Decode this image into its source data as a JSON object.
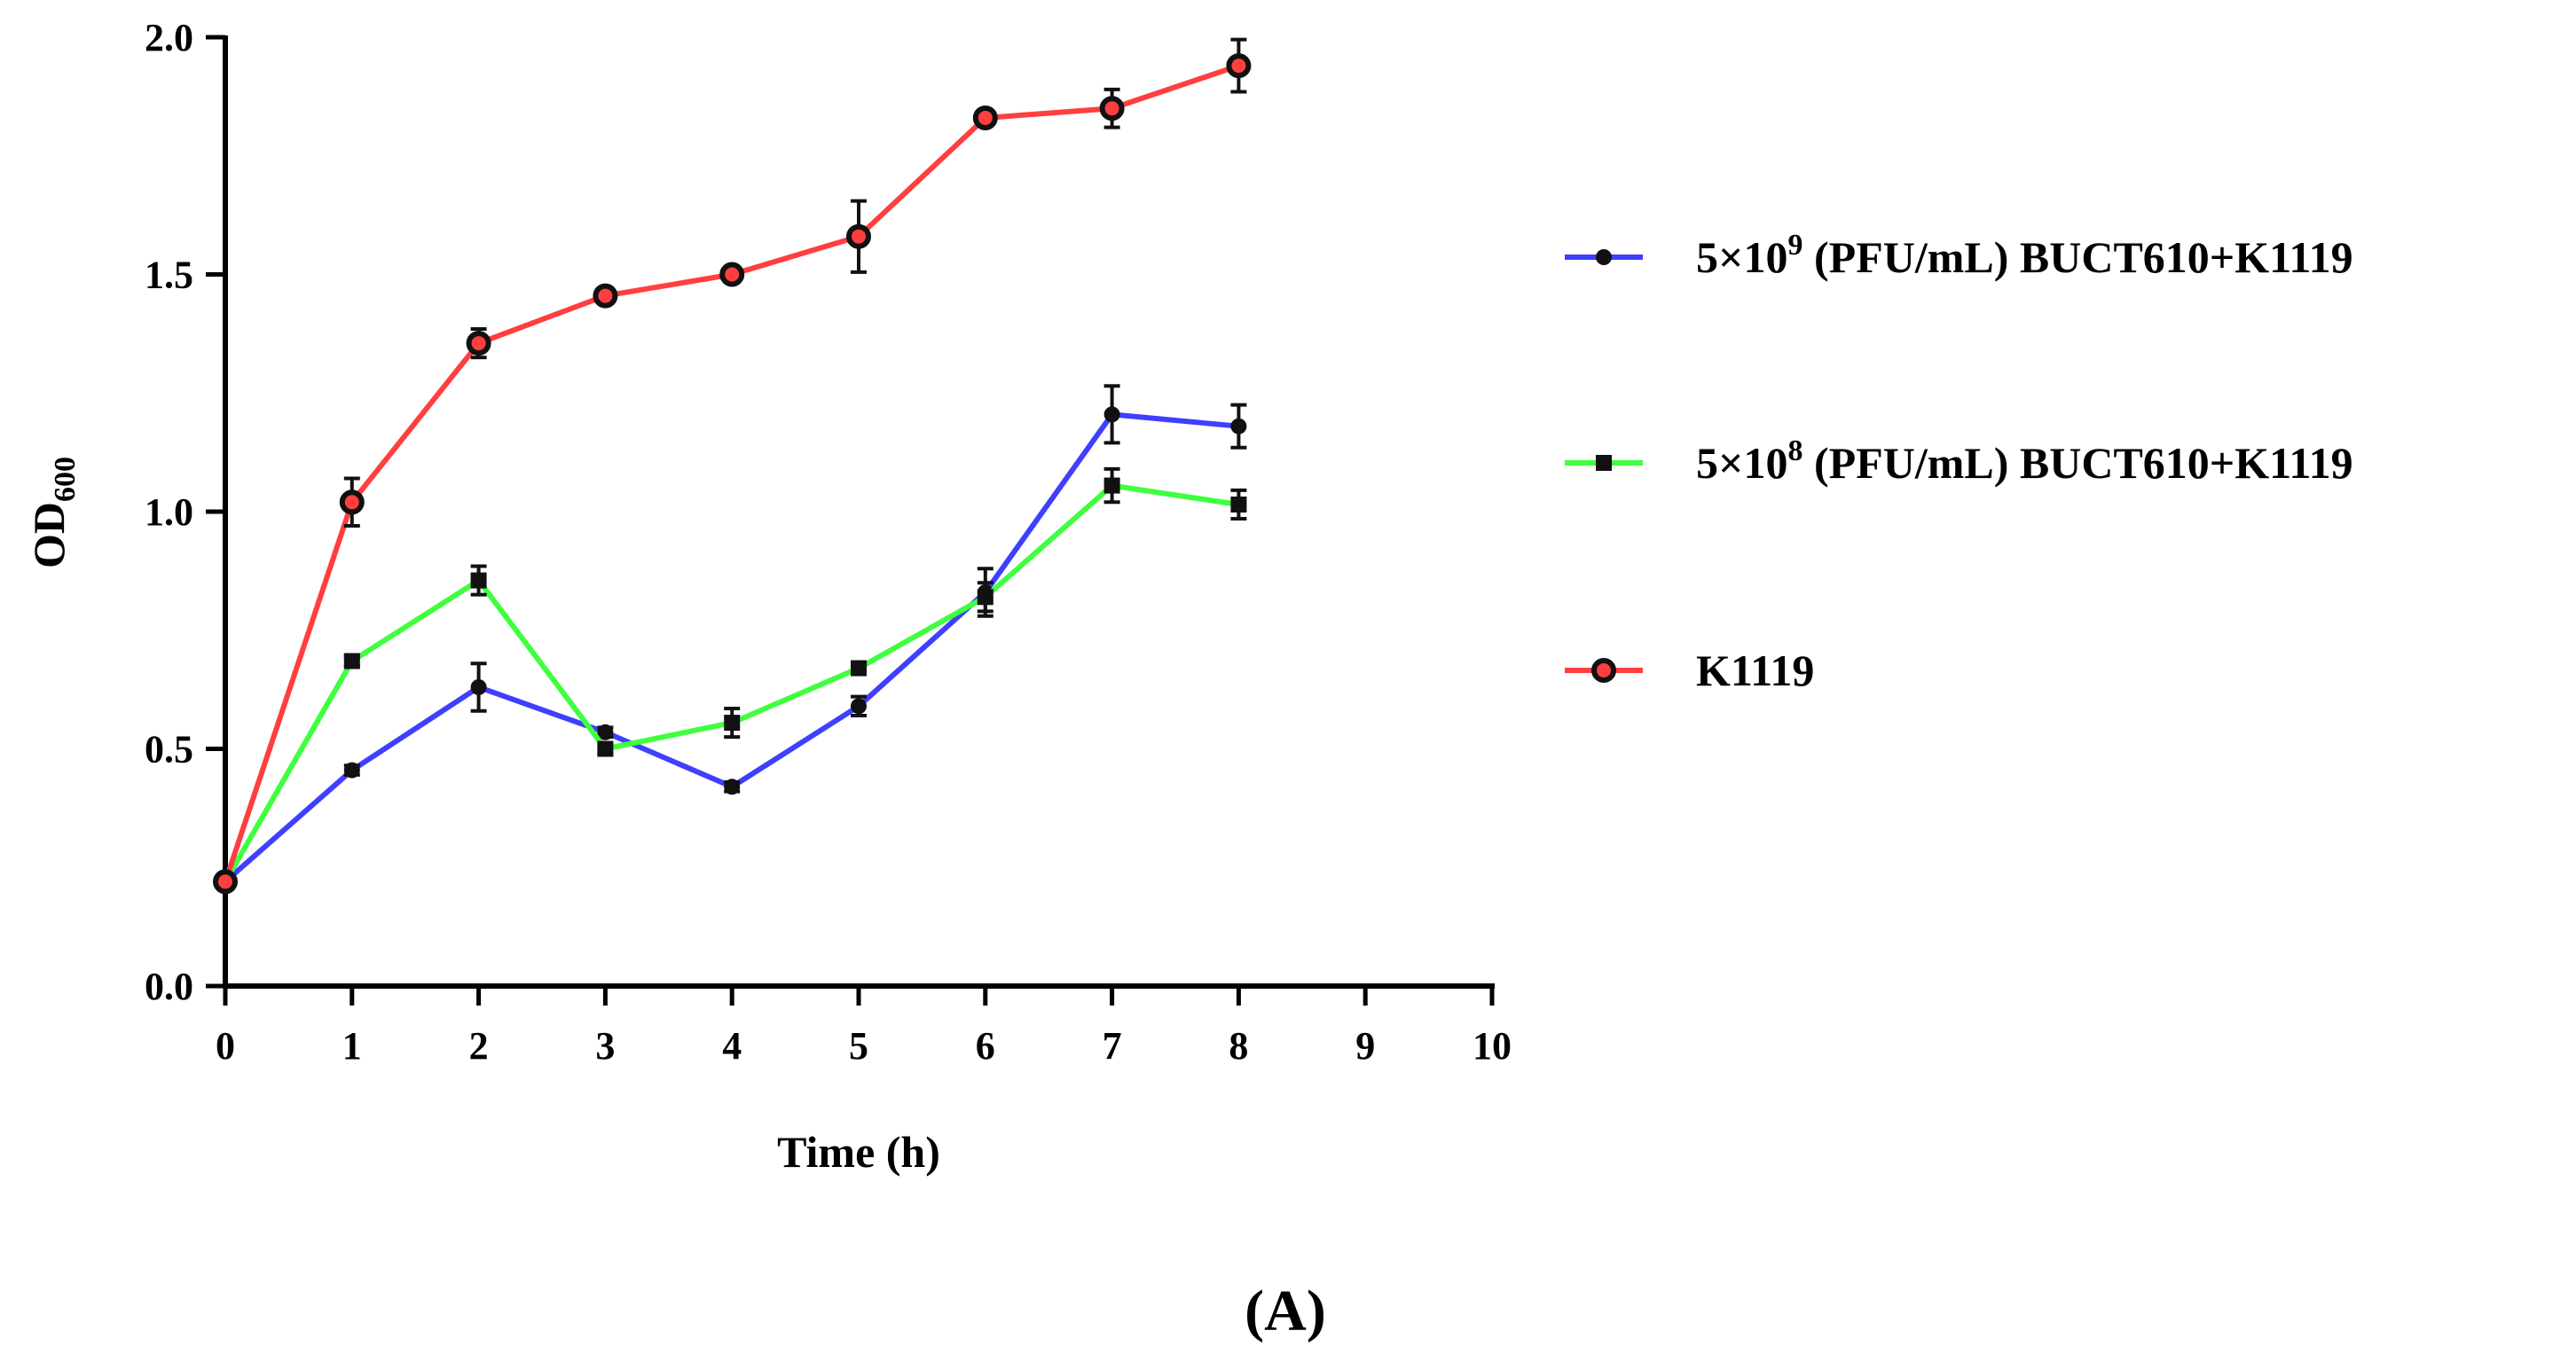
{
  "chart_data": {
    "type": "line",
    "xlabel": "Time (h)",
    "ylabel": {
      "main": "OD",
      "sub": "600"
    },
    "xlim": [
      0,
      10
    ],
    "ylim": [
      0,
      2.0
    ],
    "xticks": [
      0,
      1,
      2,
      3,
      4,
      5,
      6,
      7,
      8,
      9,
      10
    ],
    "xtick_labels": [
      "0",
      "1",
      "2",
      "3",
      "4",
      "5",
      "6",
      "7",
      "8",
      "9",
      "10"
    ],
    "yticks": [
      0,
      0.5,
      1.0,
      1.5,
      2.0
    ],
    "ytick_labels": [
      "0.0",
      "0.5",
      "1.0",
      "1.5",
      "2.0"
    ],
    "grid": false,
    "legend_position": "right",
    "series": [
      {
        "name": {
          "pre": "5×10",
          "sup": "9",
          "post": " (PFU/mL) BUCT610+K1119"
        },
        "color": "#3f3fff",
        "marker": "dot",
        "x": [
          0,
          1,
          2,
          3,
          4,
          5,
          6,
          7,
          8
        ],
        "y": [
          0.22,
          0.455,
          0.63,
          0.535,
          0.42,
          0.59,
          0.83,
          1.205,
          1.18
        ],
        "err": [
          0.0,
          0.01,
          0.05,
          0.01,
          0.01,
          0.02,
          0.05,
          0.06,
          0.045
        ]
      },
      {
        "name": {
          "pre": "5×10",
          "sup": "8",
          "post": " (PFU/mL) BUCT610+K1119"
        },
        "color": "#3fff3f",
        "marker": "square",
        "x": [
          0,
          1,
          2,
          3,
          4,
          5,
          6,
          7,
          8
        ],
        "y": [
          0.22,
          0.685,
          0.855,
          0.5,
          0.555,
          0.67,
          0.82,
          1.055,
          1.015
        ],
        "err": [
          0.0,
          0.01,
          0.03,
          0.01,
          0.03,
          0.01,
          0.03,
          0.035,
          0.03
        ]
      },
      {
        "name": {
          "pre": "K1119",
          "sup": "",
          "post": ""
        },
        "color": "#ff3f3f",
        "marker": "ring",
        "x": [
          0,
          1,
          2,
          3,
          4,
          5,
          6,
          7,
          8
        ],
        "y": [
          0.22,
          1.02,
          1.355,
          1.455,
          1.5,
          1.58,
          1.83,
          1.85,
          1.94
        ],
        "err": [
          0.0,
          0.05,
          0.03,
          0.01,
          0.01,
          0.075,
          0.01,
          0.04,
          0.055
        ]
      }
    ]
  },
  "panel_label": {
    "open": "(",
    "letter": "A",
    "close": ")"
  }
}
